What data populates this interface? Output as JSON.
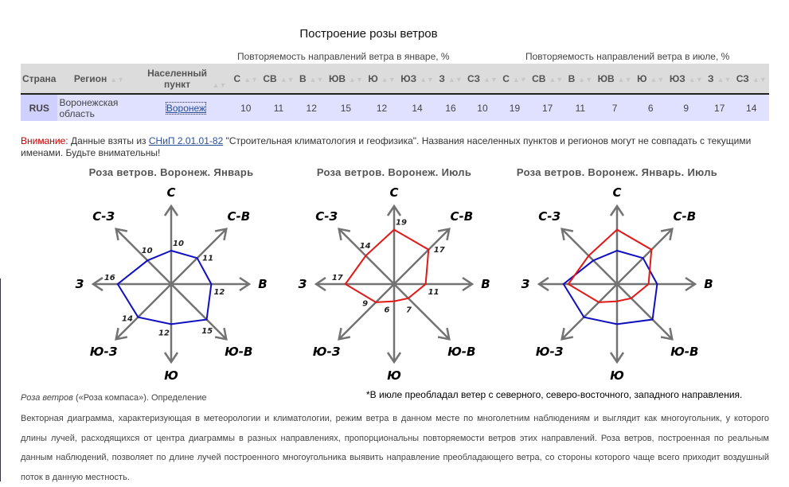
{
  "title": "Построение розы ветров",
  "group_jan": "Повторяемость направлений ветра в январе, %",
  "group_jul": "Повторяемость направлений ветра в июле, %",
  "columns": {
    "country": "Страна",
    "region": "Регион",
    "place": "Населенный пункт",
    "dirs": [
      "С",
      "СВ",
      "В",
      "ЮВ",
      "Ю",
      "ЮЗ",
      "З",
      "СЗ"
    ]
  },
  "row": {
    "country": "RUS",
    "region": "Воронежская область",
    "place": "Воронеж",
    "jan": [
      10,
      11,
      12,
      15,
      12,
      14,
      16,
      10
    ],
    "jul": [
      19,
      17,
      11,
      7,
      6,
      9,
      17,
      14
    ]
  },
  "note": {
    "warn": "Внимание:",
    "pre": " Данные взяты из ",
    "link": "СНиП 2.01.01-82",
    "post": " \"Строительная климатология и геофизика\". Названия населенных пунктов и регионов могут не совпадать с текущими именами. Будьте внимательны!"
  },
  "chart_data": [
    {
      "type": "radar",
      "title": "Роза ветров. Воронеж. Январь",
      "categories": [
        "С",
        "С-В",
        "В",
        "Ю-В",
        "Ю",
        "Ю-З",
        "З",
        "С-З"
      ],
      "series": [
        {
          "name": "Январь",
          "color": "#1010c0",
          "values": [
            10,
            11,
            12,
            15,
            12,
            14,
            16,
            10
          ]
        }
      ],
      "data_labels": true
    },
    {
      "type": "radar",
      "title": "Роза ветров. Воронеж. Июль",
      "categories": [
        "С",
        "С-В",
        "В",
        "Ю-В",
        "Ю",
        "Ю-З",
        "З",
        "С-З"
      ],
      "series": [
        {
          "name": "Июль",
          "color": "#e01818",
          "values": [
            19,
            17,
            11,
            7,
            6,
            9,
            17,
            14
          ]
        }
      ],
      "data_labels": true
    },
    {
      "type": "radar",
      "title": "Роза ветров. Воронеж. Январь. Июль",
      "categories": [
        "С",
        "С-В",
        "В",
        "Ю-В",
        "Ю",
        "Ю-З",
        "З",
        "С-З"
      ],
      "series": [
        {
          "name": "Январь",
          "color": "#1010c0",
          "values": [
            10,
            11,
            12,
            15,
            12,
            14,
            16,
            10
          ]
        },
        {
          "name": "Июль",
          "color": "#e01818",
          "values": [
            19,
            17,
            11,
            7,
            6,
            9,
            17,
            14
          ]
        }
      ],
      "data_labels": false
    }
  ],
  "july_note": "*В июле преобладал ветер с северного, северо-восточного, западного направления.",
  "def_title": "Роза ветров",
  "def_title_rest": " («Роза компаса»). Определение",
  "definition": "Векторная диаграмма, характеризующая в метеорологии и климатологии, режим ветра в данном месте по многолетним наблюдениям и выглядит как многоугольник, у которого длины лучей, расходящихся от центра диаграммы в разных направлениях, пропорциональны повторяемости ветров этих направлений. Роза ветров, построенная по реальным данным наблюдений, позволяет по длине лучей построенного многоугольника выявить направление преобладающего ветра, со стороны которого чаще всего приходит воздушный поток в данную местность."
}
